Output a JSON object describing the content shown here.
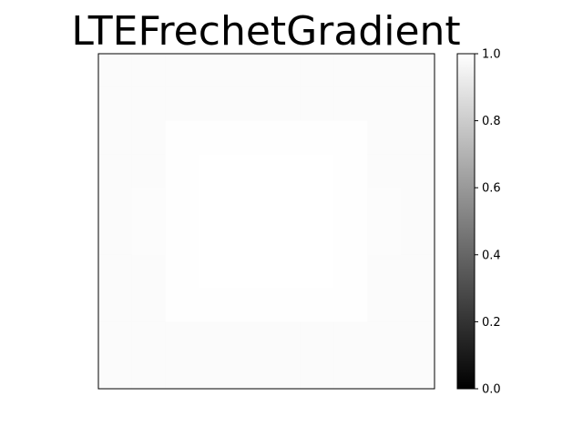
{
  "chart_data": {
    "type": "heatmap",
    "title": "LTEFrechetGradient",
    "xlabel": "",
    "ylabel": "",
    "colormap": "gray",
    "colorbar": {
      "vmin": 0.0,
      "vmax": 1.0,
      "ticks": [
        0.0,
        0.2,
        0.4,
        0.6,
        0.8,
        1.0
      ],
      "tick_labels": [
        "0.0",
        "0.2",
        "0.4",
        "0.6",
        "0.8",
        "1.0"
      ]
    },
    "axes_ticks_visible": false,
    "grid": false,
    "rows": 10,
    "cols": 10,
    "values": [
      [
        0.985,
        0.985,
        0.985,
        0.985,
        0.985,
        0.985,
        0.985,
        0.985,
        0.985,
        0.985
      ],
      [
        0.985,
        0.985,
        0.985,
        0.985,
        0.985,
        0.985,
        0.985,
        0.985,
        0.985,
        0.985
      ],
      [
        0.985,
        0.985,
        0.995,
        0.995,
        0.995,
        0.995,
        0.995,
        0.995,
        0.985,
        0.985
      ],
      [
        0.985,
        0.985,
        0.995,
        1.0,
        1.0,
        1.0,
        1.0,
        0.995,
        0.985,
        0.985
      ],
      [
        0.985,
        0.99,
        0.995,
        1.0,
        1.0,
        1.0,
        1.0,
        0.995,
        0.99,
        0.985
      ],
      [
        0.985,
        0.99,
        0.995,
        1.0,
        1.0,
        1.0,
        1.0,
        0.995,
        0.99,
        0.985
      ],
      [
        0.985,
        0.985,
        0.995,
        1.0,
        1.0,
        1.0,
        1.0,
        0.995,
        0.985,
        0.985
      ],
      [
        0.985,
        0.985,
        0.995,
        0.995,
        0.995,
        0.995,
        0.995,
        0.995,
        0.985,
        0.985
      ],
      [
        0.985,
        0.985,
        0.985,
        0.985,
        0.985,
        0.985,
        0.985,
        0.985,
        0.985,
        0.985
      ],
      [
        0.985,
        0.985,
        0.985,
        0.985,
        0.985,
        0.985,
        0.985,
        0.985,
        0.985,
        0.985
      ]
    ]
  }
}
